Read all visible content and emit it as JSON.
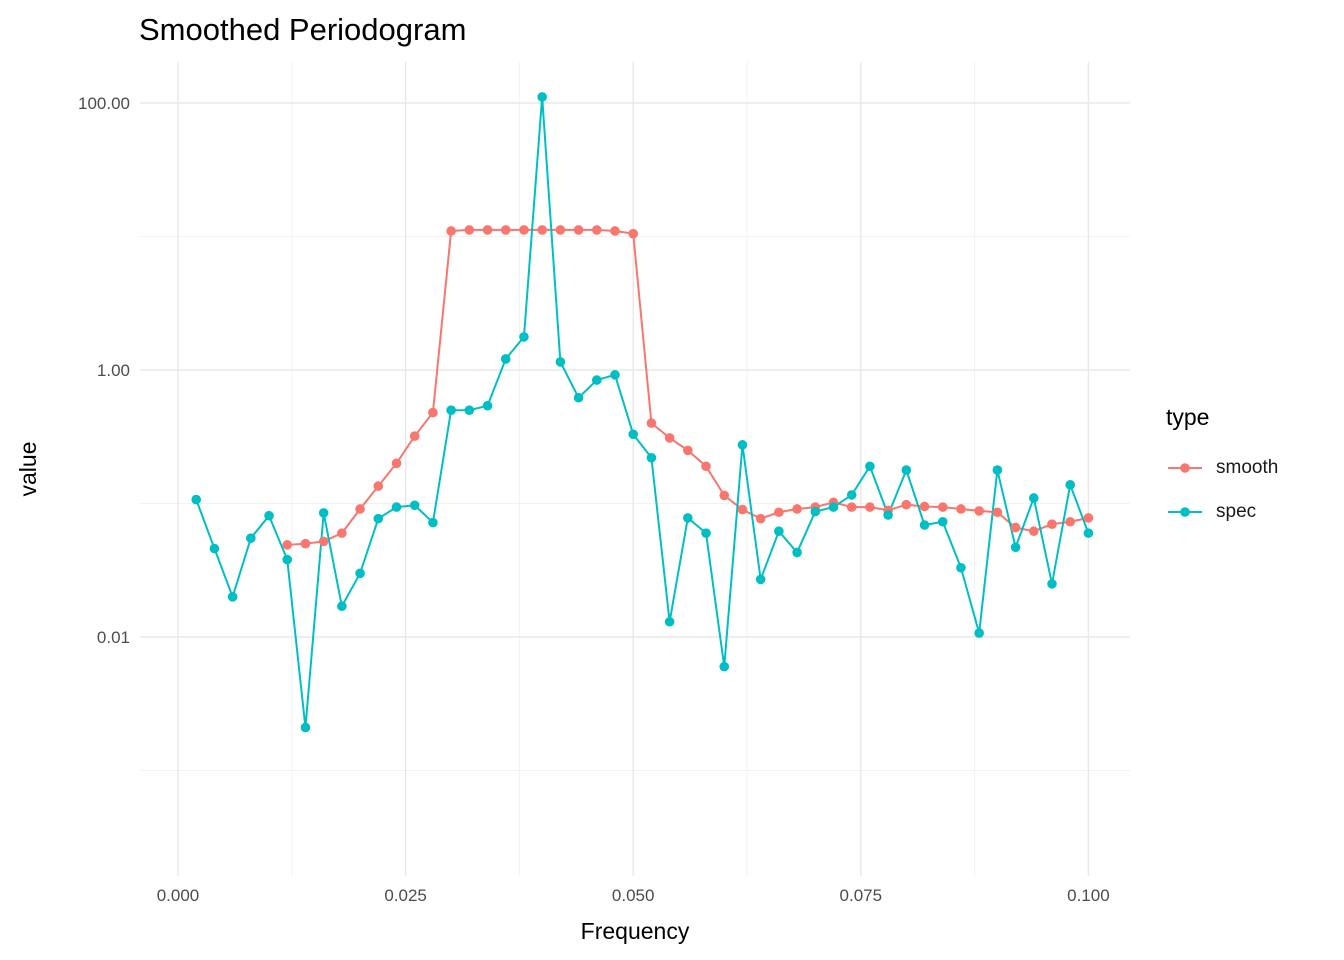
{
  "chart_data": {
    "type": "line",
    "title": "Smoothed Periodogram",
    "xlabel": "Frequency",
    "ylabel": "value",
    "legend_title": "type",
    "legend_position": "right",
    "y_scale": "log10",
    "grid": true,
    "colors": {
      "background": "#FFFFFF",
      "grid_major": "#E8E8E8",
      "grid_minor": "#F2F2F2",
      "tick_text": "#4D4D4D"
    },
    "axes": {
      "x_ticks": [
        {
          "value": 0.0,
          "label": "0.000"
        },
        {
          "value": 0.025,
          "label": "0.025"
        },
        {
          "value": 0.05,
          "label": "0.050"
        },
        {
          "value": 0.075,
          "label": "0.075"
        },
        {
          "value": 0.1,
          "label": "0.100"
        }
      ],
      "x_minor": [
        0.0125,
        0.0375,
        0.0625,
        0.0875
      ],
      "y_ticks": [
        {
          "value": 100,
          "label": "100.00"
        },
        {
          "value": 1,
          "label": "1.00"
        },
        {
          "value": 0.01,
          "label": "0.01"
        }
      ],
      "y_minor": [
        10,
        0.1,
        0.001
      ]
    },
    "series": [
      {
        "name": "smooth",
        "color": "#F8766D",
        "points": [
          [
            0.012,
            0.049
          ],
          [
            0.014,
            0.05
          ],
          [
            0.016,
            0.052
          ],
          [
            0.018,
            0.06
          ],
          [
            0.02,
            0.091
          ],
          [
            0.022,
            0.135
          ],
          [
            0.024,
            0.2
          ],
          [
            0.026,
            0.32
          ],
          [
            0.028,
            0.48
          ],
          [
            0.03,
            11.0
          ],
          [
            0.032,
            11.2
          ],
          [
            0.034,
            11.2
          ],
          [
            0.036,
            11.2
          ],
          [
            0.038,
            11.2
          ],
          [
            0.04,
            11.2
          ],
          [
            0.042,
            11.2
          ],
          [
            0.044,
            11.2
          ],
          [
            0.046,
            11.2
          ],
          [
            0.048,
            11.0
          ],
          [
            0.05,
            10.5
          ],
          [
            0.052,
            0.4
          ],
          [
            0.054,
            0.31
          ],
          [
            0.056,
            0.25
          ],
          [
            0.058,
            0.19
          ],
          [
            0.06,
            0.115
          ],
          [
            0.062,
            0.09
          ],
          [
            0.064,
            0.077
          ],
          [
            0.066,
            0.086
          ],
          [
            0.068,
            0.091
          ],
          [
            0.07,
            0.094
          ],
          [
            0.072,
            0.102
          ],
          [
            0.074,
            0.094
          ],
          [
            0.076,
            0.094
          ],
          [
            0.078,
            0.089
          ],
          [
            0.08,
            0.098
          ],
          [
            0.082,
            0.095
          ],
          [
            0.084,
            0.094
          ],
          [
            0.086,
            0.091
          ],
          [
            0.088,
            0.088
          ],
          [
            0.09,
            0.086
          ],
          [
            0.092,
            0.066
          ],
          [
            0.094,
            0.062
          ],
          [
            0.096,
            0.07
          ],
          [
            0.098,
            0.073
          ],
          [
            0.1,
            0.078
          ]
        ]
      },
      {
        "name": "spec",
        "color": "#00BFC4",
        "points": [
          [
            0.002,
            0.107
          ],
          [
            0.004,
            0.046
          ],
          [
            0.006,
            0.02
          ],
          [
            0.008,
            0.055
          ],
          [
            0.01,
            0.081
          ],
          [
            0.012,
            0.038
          ],
          [
            0.014,
            0.0021
          ],
          [
            0.016,
            0.085
          ],
          [
            0.018,
            0.017
          ],
          [
            0.02,
            0.03
          ],
          [
            0.022,
            0.077
          ],
          [
            0.024,
            0.094
          ],
          [
            0.026,
            0.097
          ],
          [
            0.028,
            0.072
          ],
          [
            0.03,
            0.5
          ],
          [
            0.032,
            0.5
          ],
          [
            0.034,
            0.54
          ],
          [
            0.036,
            1.21
          ],
          [
            0.038,
            1.77
          ],
          [
            0.04,
            111
          ],
          [
            0.042,
            1.15
          ],
          [
            0.044,
            0.62
          ],
          [
            0.046,
            0.84
          ],
          [
            0.048,
            0.92
          ],
          [
            0.05,
            0.33
          ],
          [
            0.052,
            0.22
          ],
          [
            0.054,
            0.013
          ],
          [
            0.056,
            0.078
          ],
          [
            0.058,
            0.06
          ],
          [
            0.06,
            0.006
          ],
          [
            0.062,
            0.275
          ],
          [
            0.064,
            0.027
          ],
          [
            0.066,
            0.062
          ],
          [
            0.068,
            0.043
          ],
          [
            0.07,
            0.087
          ],
          [
            0.072,
            0.094
          ],
          [
            0.074,
            0.116
          ],
          [
            0.076,
            0.19
          ],
          [
            0.078,
            0.082
          ],
          [
            0.08,
            0.178
          ],
          [
            0.082,
            0.069
          ],
          [
            0.084,
            0.073
          ],
          [
            0.086,
            0.033
          ],
          [
            0.088,
            0.0107
          ],
          [
            0.09,
            0.178
          ],
          [
            0.092,
            0.047
          ],
          [
            0.094,
            0.11
          ],
          [
            0.096,
            0.025
          ],
          [
            0.098,
            0.138
          ],
          [
            0.1,
            0.06
          ]
        ]
      }
    ]
  }
}
